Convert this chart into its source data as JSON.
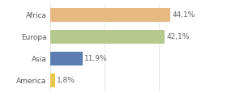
{
  "categories": [
    "Africa",
    "Europa",
    "Asia",
    "America"
  ],
  "values": [
    44.1,
    42.1,
    11.9,
    1.8
  ],
  "labels": [
    "44,1%",
    "42,1%",
    "11,9%",
    "1,8%"
  ],
  "bar_colors": [
    "#e8b882",
    "#b5c98e",
    "#5b7db1",
    "#e8c84a"
  ],
  "background_color": "#ffffff",
  "xlim": [
    0,
    55
  ],
  "label_fontsize": 6.5,
  "tick_fontsize": 6.5
}
